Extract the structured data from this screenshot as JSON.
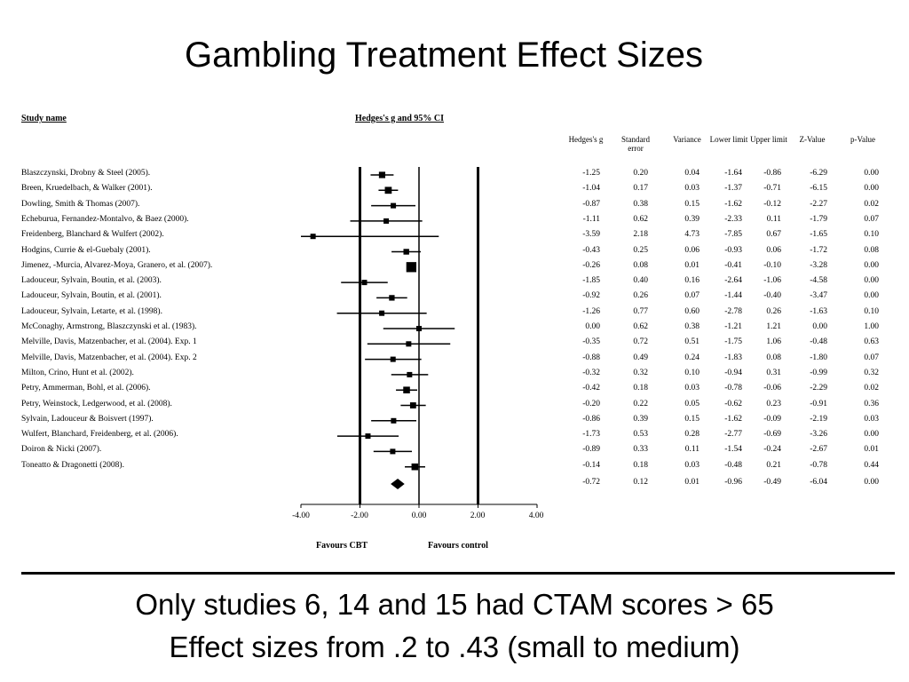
{
  "title": "Gambling Treatment Effect Sizes",
  "headers": {
    "study": "Study name",
    "plot": "Hedges's g and 95% CI",
    "columns": [
      "Hedges's g",
      "Standard error",
      "Variance",
      "Lower limit",
      "Upper limit",
      "Z-Value",
      "p-Value"
    ]
  },
  "axis": {
    "ticks": [
      "-4.00",
      "-2.00",
      "0.00",
      "2.00",
      "4.00"
    ],
    "favours_left": "Favours CBT",
    "favours_right": "Favours control"
  },
  "chart_data": {
    "type": "forest",
    "xlim": [
      -4,
      4
    ],
    "studies": [
      {
        "name": "Blaszczynski, Drobny & Steel (2005).",
        "g": -1.25,
        "se": 0.2,
        "var": 0.04,
        "lower": -1.64,
        "upper": -0.86,
        "z": -6.29,
        "p": 0.0
      },
      {
        "name": "Breen, Kruedelbach, & Walker (2001).",
        "g": -1.04,
        "se": 0.17,
        "var": 0.03,
        "lower": -1.37,
        "upper": -0.71,
        "z": -6.15,
        "p": 0.0
      },
      {
        "name": "Dowling, Smith & Thomas (2007).",
        "g": -0.87,
        "se": 0.38,
        "var": 0.15,
        "lower": -1.62,
        "upper": -0.12,
        "z": -2.27,
        "p": 0.02
      },
      {
        "name": "Echeburua, Fernandez-Montalvo, & Baez (2000).",
        "g": -1.11,
        "se": 0.62,
        "var": 0.39,
        "lower": -2.33,
        "upper": 0.11,
        "z": -1.79,
        "p": 0.07
      },
      {
        "name": "Freidenberg, Blanchard & Wulfert (2002).",
        "g": -3.59,
        "se": 2.18,
        "var": 4.73,
        "lower": -7.85,
        "upper": 0.67,
        "z": -1.65,
        "p": 0.1
      },
      {
        "name": "Hodgins, Currie & el-Guebaly (2001).",
        "g": -0.43,
        "se": 0.25,
        "var": 0.06,
        "lower": -0.93,
        "upper": 0.06,
        "z": -1.72,
        "p": 0.08
      },
      {
        "name": "Jimenez, -Murcia, Alvarez-Moya, Granero, et al. (2007).",
        "g": -0.26,
        "se": 0.08,
        "var": 0.01,
        "lower": -0.41,
        "upper": -0.1,
        "z": -3.28,
        "p": 0.0
      },
      {
        "name": "Ladouceur, Sylvain, Boutin, et al. (2003).",
        "g": -1.85,
        "se": 0.4,
        "var": 0.16,
        "lower": -2.64,
        "upper": -1.06,
        "z": -4.58,
        "p": 0.0
      },
      {
        "name": "Ladouceur, Sylvain, Boutin, et al. (2001).",
        "g": -0.92,
        "se": 0.26,
        "var": 0.07,
        "lower": -1.44,
        "upper": -0.4,
        "z": -3.47,
        "p": 0.0
      },
      {
        "name": "Ladouceur, Sylvain, Letarte, et al. (1998).",
        "g": -1.26,
        "se": 0.77,
        "var": 0.6,
        "lower": -2.78,
        "upper": 0.26,
        "z": -1.63,
        "p": 0.1
      },
      {
        "name": "McConaghy, Armstrong, Blaszczynski et al. (1983).",
        "g": 0.0,
        "se": 0.62,
        "var": 0.38,
        "lower": -1.21,
        "upper": 1.21,
        "z": 0.0,
        "p": 1.0
      },
      {
        "name": "Melville, Davis, Matzenbacher, et al. (2004). Exp. 1",
        "g": -0.35,
        "se": 0.72,
        "var": 0.51,
        "lower": -1.75,
        "upper": 1.06,
        "z": -0.48,
        "p": 0.63
      },
      {
        "name": "Melville, Davis, Matzenbacher, et al. (2004). Exp. 2",
        "g": -0.88,
        "se": 0.49,
        "var": 0.24,
        "lower": -1.83,
        "upper": 0.08,
        "z": -1.8,
        "p": 0.07
      },
      {
        "name": "Milton, Crino, Hunt et al. (2002).",
        "g": -0.32,
        "se": 0.32,
        "var": 0.1,
        "lower": -0.94,
        "upper": 0.31,
        "z": -0.99,
        "p": 0.32
      },
      {
        "name": "Petry, Ammerman, Bohl, et al. (2006).",
        "g": -0.42,
        "se": 0.18,
        "var": 0.03,
        "lower": -0.78,
        "upper": -0.06,
        "z": -2.29,
        "p": 0.02
      },
      {
        "name": "Petry, Weinstock, Ledgerwood, et al. (2008).",
        "g": -0.2,
        "se": 0.22,
        "var": 0.05,
        "lower": -0.62,
        "upper": 0.23,
        "z": -0.91,
        "p": 0.36
      },
      {
        "name": "Sylvain, Ladouceur & Boisvert (1997).",
        "g": -0.86,
        "se": 0.39,
        "var": 0.15,
        "lower": -1.62,
        "upper": -0.09,
        "z": -2.19,
        "p": 0.03
      },
      {
        "name": "Wulfert, Blanchard, Freidenberg, et al. (2006).",
        "g": -1.73,
        "se": 0.53,
        "var": 0.28,
        "lower": -2.77,
        "upper": -0.69,
        "z": -3.26,
        "p": 0.0
      },
      {
        "name": "Doiron & Nicki (2007).",
        "g": -0.89,
        "se": 0.33,
        "var": 0.11,
        "lower": -1.54,
        "upper": -0.24,
        "z": -2.67,
        "p": 0.01
      },
      {
        "name": "Toneatto & Dragonetti (2008).",
        "g": -0.14,
        "se": 0.18,
        "var": 0.03,
        "lower": -0.48,
        "upper": 0.21,
        "z": -0.78,
        "p": 0.44
      }
    ],
    "summary": {
      "g": -0.72,
      "se": 0.12,
      "var": 0.01,
      "lower": -0.96,
      "upper": -0.49,
      "z": -6.04,
      "p": 0.0
    }
  },
  "notes": [
    "Only studies 6, 14 and 15 had CTAM  scores > 65",
    "Effect sizes from .2 to .43 (small to medium)"
  ]
}
